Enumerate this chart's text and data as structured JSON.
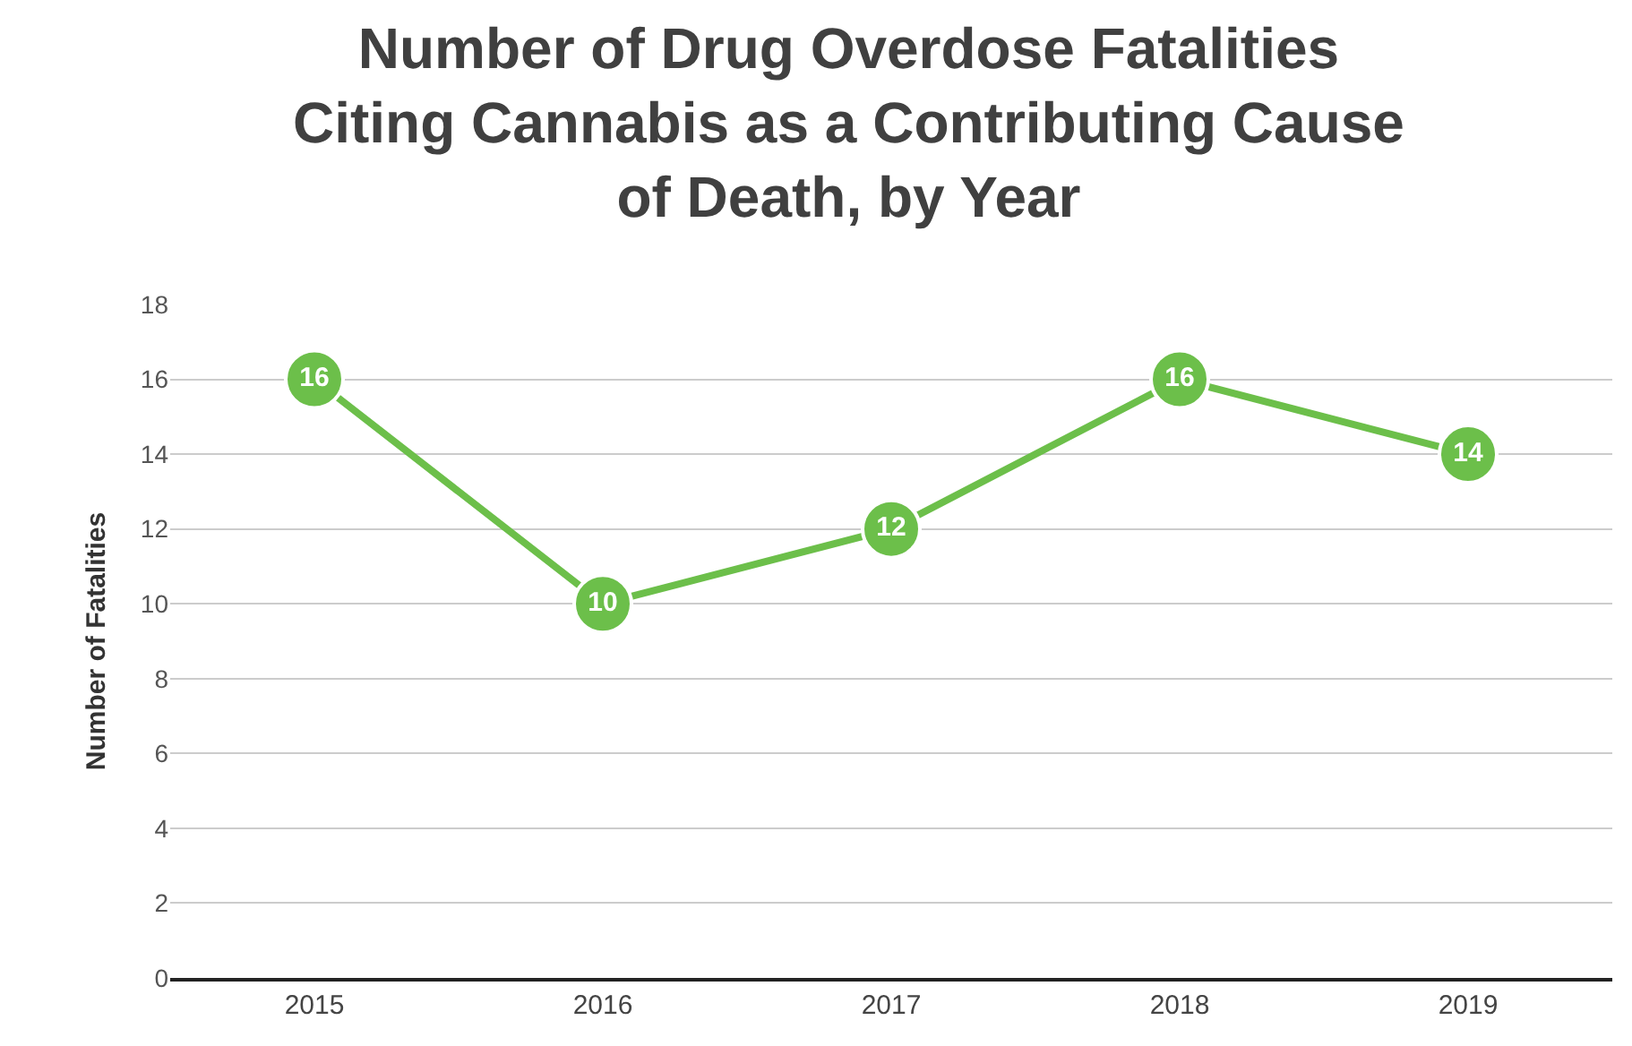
{
  "chart_data": {
    "type": "line",
    "title": "Number of Drug Overdose Fatalities\nCiting Cannabis as a Contributing Cause\nof Death, by Year",
    "ylabel": "Number of Fatalities",
    "categories": [
      "2015",
      "2016",
      "2017",
      "2018",
      "2019"
    ],
    "series": [
      {
        "color": "#6cbf4a",
        "values": [
          16,
          10,
          12,
          16,
          14
        ]
      }
    ],
    "ylim": [
      0,
      18
    ],
    "yticks": [
      0,
      2,
      4,
      6,
      8,
      10,
      12,
      14,
      16,
      18
    ],
    "grid": "y",
    "marker": "circle",
    "line_style": "solid",
    "data_labels": true
  }
}
